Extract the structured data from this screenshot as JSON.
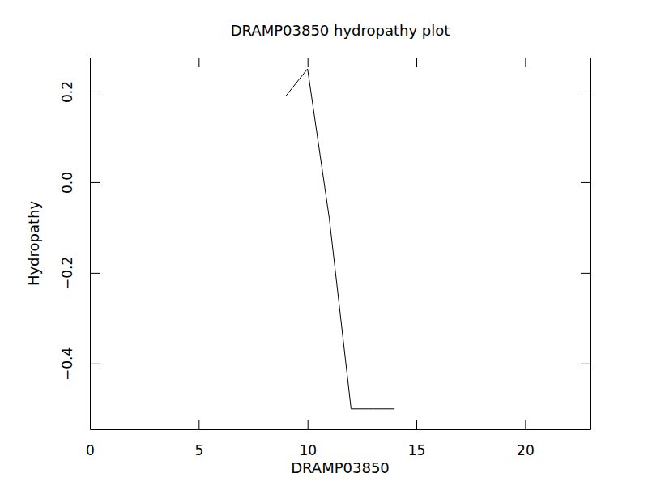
{
  "chart_data": {
    "type": "line",
    "title": "DRAMP03850 hydropathy plot",
    "x_label": "DRAMP03850",
    "y_label": "Hydropathy",
    "x": [
      9,
      10,
      11,
      12,
      13,
      14
    ],
    "values": [
      0.19,
      0.25,
      -0.08,
      -0.5,
      -0.5,
      -0.5
    ],
    "color": "#000000",
    "xlim": [
      0,
      23
    ],
    "xticks": [
      0,
      5,
      10,
      15,
      20
    ],
    "ylim": [
      -0.545,
      0.275
    ],
    "yticks": [
      {
        "value": -0.4,
        "label": "−0.4"
      },
      {
        "value": -0.2,
        "label": "−0.2"
      },
      {
        "value": 0,
        "label": "0.0"
      },
      0.2
    ],
    "grid": false
  }
}
